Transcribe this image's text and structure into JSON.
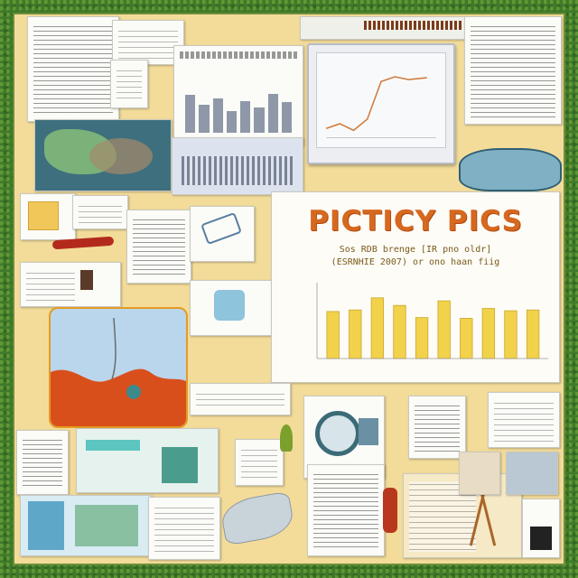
{
  "board": {
    "title": "PICTICY PICS",
    "subtitle_line1": "Sos RDB brenge [IR pno oldr]",
    "subtitle_line2": "(ESRNHIE 2007) or ono haan fiig"
  },
  "colors": {
    "grass": "#3f7a2a",
    "corkboard": "#f3dc9a",
    "title_orange": "#d6681f",
    "bar_yellow": "#f2d24b",
    "map_orange": "#d94f1c",
    "map_water": "#b9d6ec"
  },
  "chart_data": {
    "type": "bar",
    "categories": [
      "",
      "",
      "",
      "",
      "",
      "",
      "",
      "",
      "",
      ""
    ],
    "values": [
      62,
      64,
      80,
      70,
      54,
      76,
      53,
      66,
      63,
      64
    ],
    "ylim": [
      0,
      100
    ],
    "grid": false
  },
  "icons": [
    "tools-icon",
    "knife-icon",
    "chair-icon",
    "shovel-icon",
    "globe-icon",
    "tripod-icon",
    "scissors-icon"
  ]
}
